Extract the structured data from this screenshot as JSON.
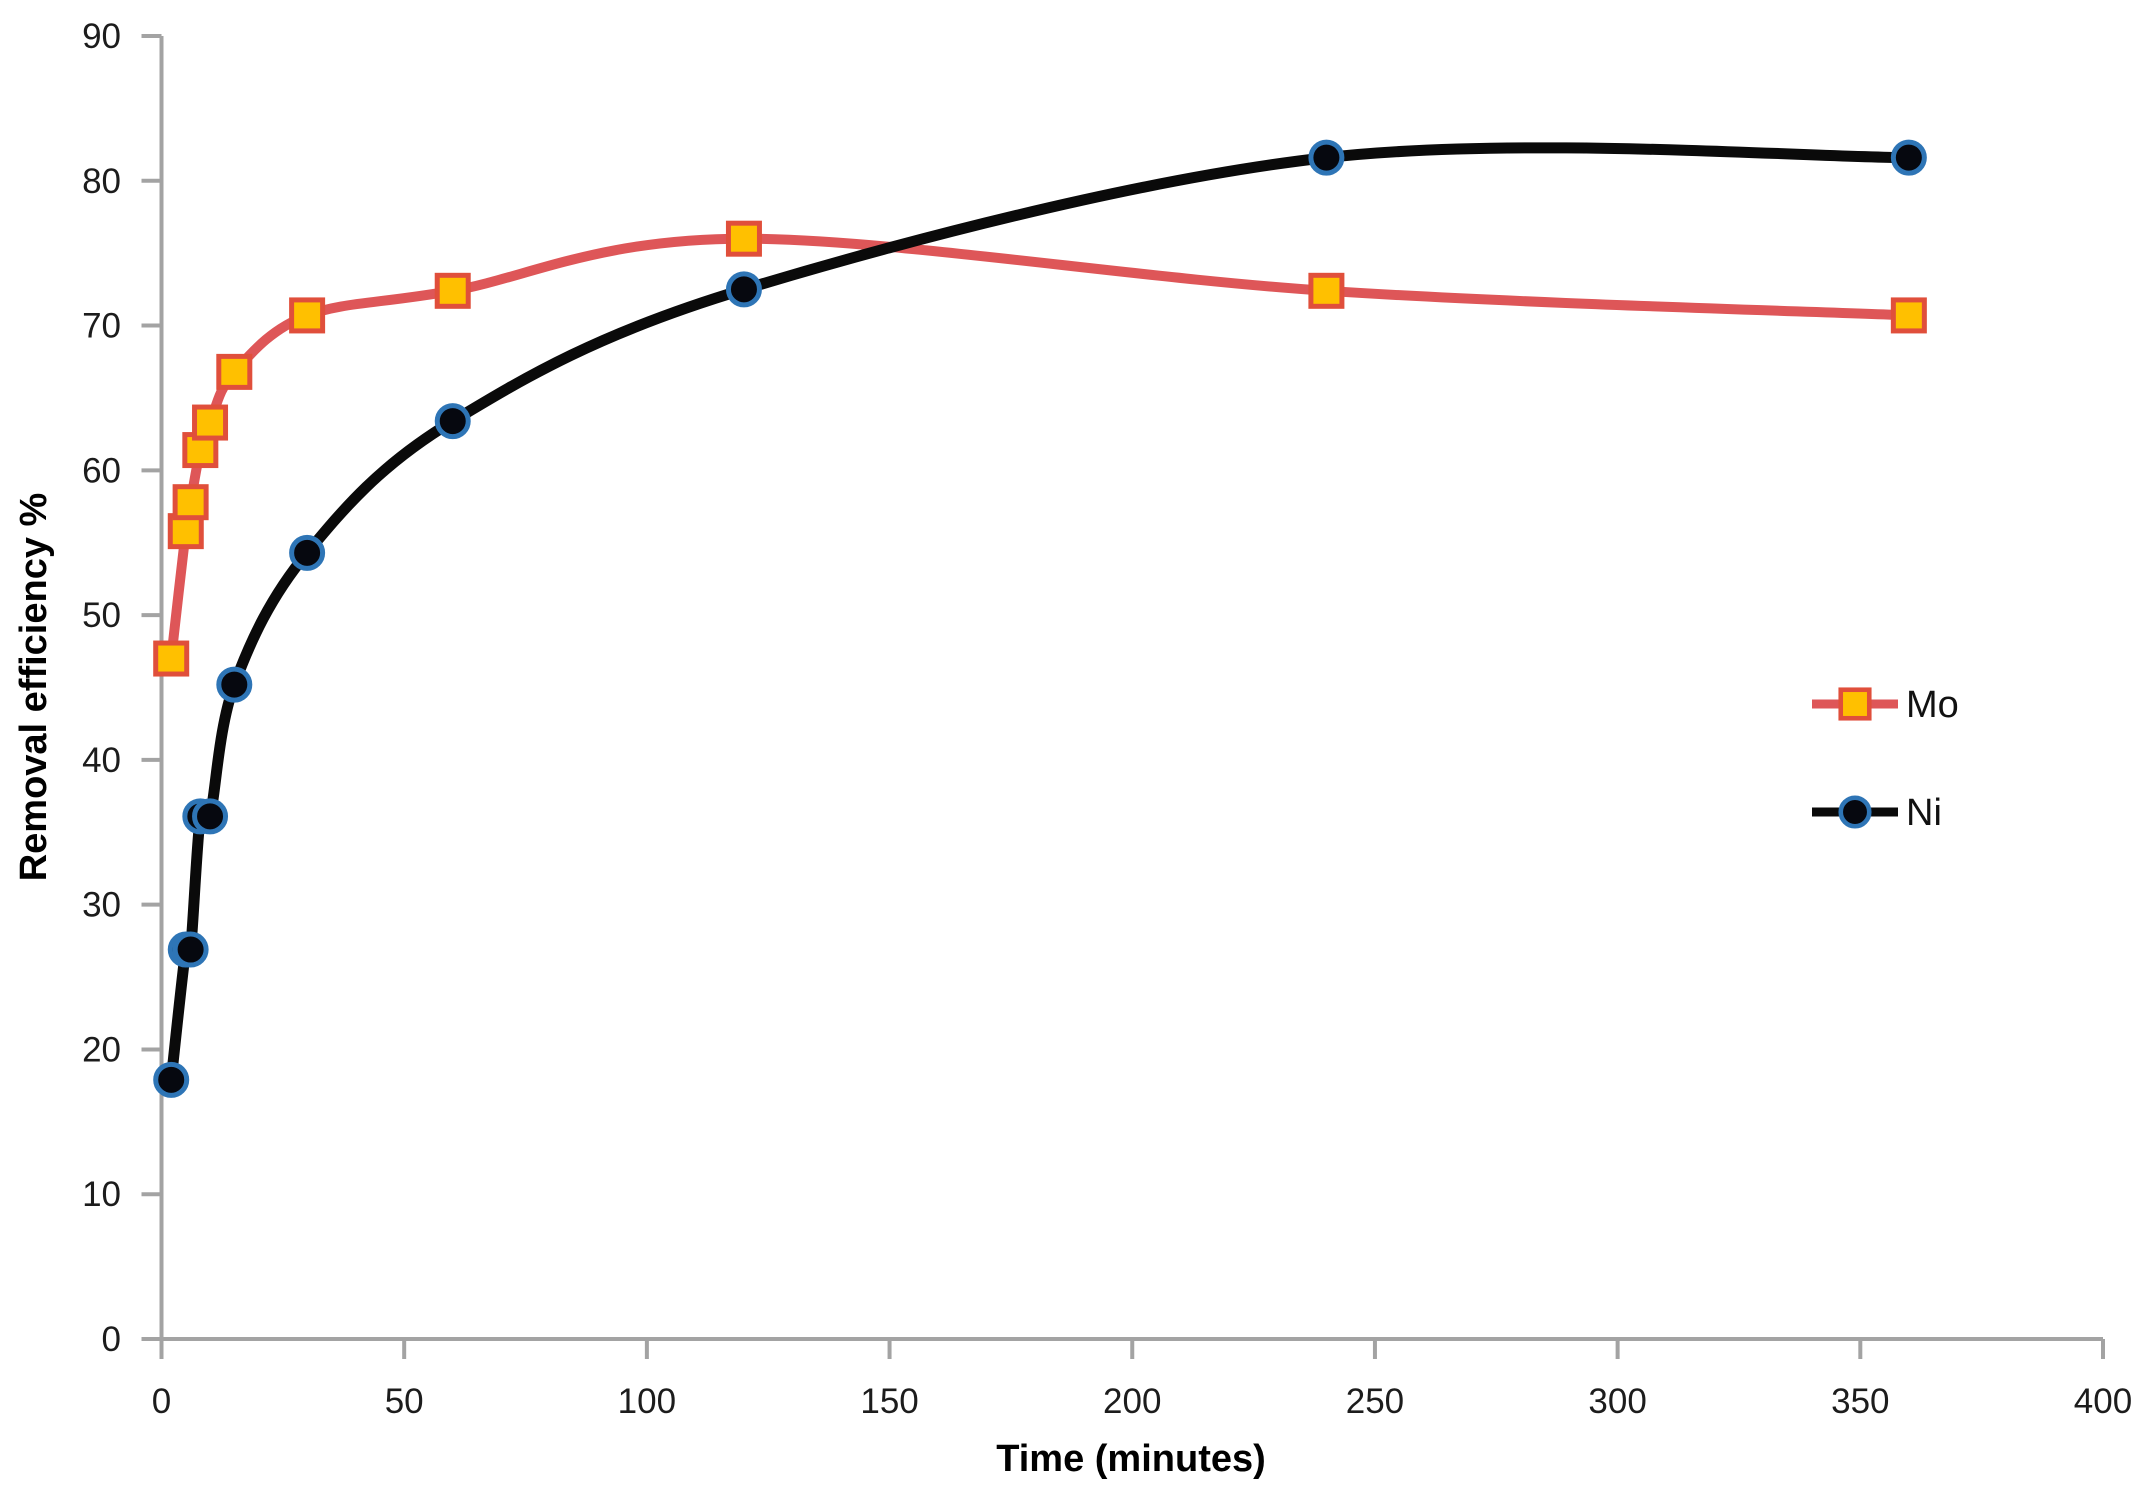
{
  "chart_data": {
    "type": "line",
    "title": "",
    "xlabel": "Time (minutes)",
    "ylabel": "Removal efficiency %",
    "xlim": [
      0,
      400
    ],
    "ylim": [
      0,
      90
    ],
    "xticks": [
      0,
      50,
      100,
      150,
      200,
      250,
      300,
      350,
      400
    ],
    "yticks": [
      0,
      10,
      20,
      30,
      40,
      50,
      60,
      70,
      80,
      90
    ],
    "grid": false,
    "legend_position": "middle-right",
    "x": [
      2,
      5,
      6,
      8,
      10,
      15,
      30,
      60,
      120,
      240,
      360
    ],
    "series": [
      {
        "name": "Mo",
        "line_color": "#DE5658",
        "marker": "square",
        "marker_fill": "#FFC000",
        "marker_stroke": "#E04F3B",
        "smooth": true,
        "values": [
          47.0,
          55.8,
          57.8,
          61.4,
          63.3,
          66.8,
          70.7,
          72.4,
          76.0,
          72.4,
          70.7
        ]
      },
      {
        "name": "Ni",
        "line_color": "#0A0A0A",
        "marker": "circle",
        "marker_fill": "#06080F",
        "marker_stroke": "#2E75B6",
        "smooth": true,
        "values": [
          17.9,
          26.9,
          26.9,
          36.1,
          36.1,
          45.2,
          54.3,
          63.4,
          72.5,
          81.6,
          81.6
        ]
      }
    ]
  },
  "axis_style": {
    "line_color": "#A3A3A3",
    "tick_label_color": "#1C1C1C"
  }
}
